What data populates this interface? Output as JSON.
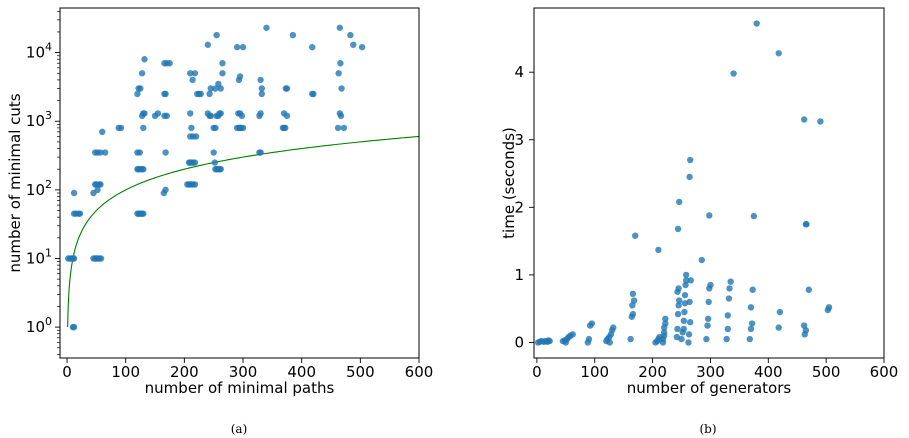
{
  "colors": {
    "points": "#1f77b4",
    "curve": "#008000",
    "axes": "#000000"
  },
  "chart_data": [
    {
      "type": "scatter",
      "caption": "(a)",
      "xlabel": "number of minimal paths",
      "ylabel": "number of minimal cuts",
      "xlim": [
        -12,
        600
      ],
      "ylim_log10": [
        -0.45,
        4.65
      ],
      "yscale": "log",
      "xticks": [
        0,
        100,
        200,
        300,
        400,
        500,
        600
      ],
      "yticks": [
        {
          "exp": 0,
          "base": "10",
          "sup": "0"
        },
        {
          "exp": 1,
          "base": "10",
          "sup": "1"
        },
        {
          "exp": 2,
          "base": "10",
          "sup": "2"
        },
        {
          "exp": 3,
          "base": "10",
          "sup": "3"
        },
        {
          "exp": 4,
          "base": "10",
          "sup": "4"
        }
      ],
      "curve": {
        "formula": "y = x",
        "color": "#008000"
      },
      "points": [
        [
          2,
          10
        ],
        [
          5,
          10
        ],
        [
          8,
          10
        ],
        [
          10,
          10
        ],
        [
          12,
          10
        ],
        [
          10,
          1
        ],
        [
          12,
          1
        ],
        [
          12,
          90
        ],
        [
          12,
          45
        ],
        [
          15,
          45
        ],
        [
          20,
          45
        ],
        [
          22,
          45
        ],
        [
          45,
          10
        ],
        [
          48,
          10
        ],
        [
          50,
          10
        ],
        [
          52,
          10
        ],
        [
          55,
          10
        ],
        [
          58,
          10
        ],
        [
          45,
          90
        ],
        [
          48,
          120
        ],
        [
          50,
          120
        ],
        [
          52,
          100
        ],
        [
          55,
          120
        ],
        [
          57,
          120
        ],
        [
          52,
          350
        ],
        [
          57,
          350
        ],
        [
          48,
          350
        ],
        [
          60,
          700
        ],
        [
          65,
          350
        ],
        [
          88,
          800
        ],
        [
          92,
          800
        ],
        [
          120,
          45
        ],
        [
          122,
          45
        ],
        [
          124,
          45
        ],
        [
          126,
          45
        ],
        [
          128,
          45
        ],
        [
          130,
          45
        ],
        [
          120,
          200
        ],
        [
          122,
          200
        ],
        [
          125,
          200
        ],
        [
          128,
          200
        ],
        [
          130,
          200
        ],
        [
          120,
          350
        ],
        [
          124,
          350
        ],
        [
          128,
          1200
        ],
        [
          130,
          1300
        ],
        [
          130,
          800
        ],
        [
          132,
          1300
        ],
        [
          122,
          3000
        ],
        [
          120,
          2500
        ],
        [
          125,
          3000
        ],
        [
          128,
          5000
        ],
        [
          132,
          8000
        ],
        [
          150,
          1200
        ],
        [
          155,
          1300
        ],
        [
          165,
          90
        ],
        [
          168,
          100
        ],
        [
          168,
          350
        ],
        [
          166,
          2500
        ],
        [
          168,
          2500
        ],
        [
          166,
          1200
        ],
        [
          170,
          1200
        ],
        [
          166,
          7000
        ],
        [
          170,
          7000
        ],
        [
          175,
          7000
        ],
        [
          205,
          120
        ],
        [
          208,
          120
        ],
        [
          210,
          120
        ],
        [
          212,
          120
        ],
        [
          215,
          120
        ],
        [
          218,
          120
        ],
        [
          208,
          250
        ],
        [
          210,
          250
        ],
        [
          212,
          250
        ],
        [
          215,
          250
        ],
        [
          218,
          250
        ],
        [
          210,
          1300
        ],
        [
          212,
          800
        ],
        [
          210,
          5000
        ],
        [
          218,
          5000
        ],
        [
          214,
          4000
        ],
        [
          210,
          600
        ],
        [
          215,
          600
        ],
        [
          220,
          600
        ],
        [
          222,
          2500
        ],
        [
          225,
          2500
        ],
        [
          228,
          2500
        ],
        [
          240,
          1300
        ],
        [
          243,
          1200
        ],
        [
          245,
          1200
        ],
        [
          240,
          13000
        ],
        [
          245,
          3000
        ],
        [
          243,
          2500
        ],
        [
          250,
          350
        ],
        [
          252,
          250
        ],
        [
          253,
          200
        ],
        [
          255,
          200
        ],
        [
          258,
          200
        ],
        [
          260,
          200
        ],
        [
          262,
          200
        ],
        [
          250,
          800
        ],
        [
          253,
          800
        ],
        [
          255,
          1200
        ],
        [
          258,
          1200
        ],
        [
          260,
          1300
        ],
        [
          262,
          1300
        ],
        [
          253,
          3000
        ],
        [
          255,
          18000
        ],
        [
          258,
          3500
        ],
        [
          262,
          3000
        ],
        [
          265,
          5000
        ],
        [
          265,
          7000
        ],
        [
          290,
          800
        ],
        [
          293,
          800
        ],
        [
          295,
          800
        ],
        [
          297,
          800
        ],
        [
          300,
          800
        ],
        [
          292,
          1300
        ],
        [
          295,
          1300
        ],
        [
          298,
          1200
        ],
        [
          293,
          4000
        ],
        [
          295,
          4500
        ],
        [
          300,
          12000
        ],
        [
          290,
          12000
        ],
        [
          328,
          350
        ],
        [
          330,
          350
        ],
        [
          332,
          2500
        ],
        [
          328,
          1200
        ],
        [
          330,
          1300
        ],
        [
          332,
          3000
        ],
        [
          330,
          4000
        ],
        [
          340,
          23000
        ],
        [
          368,
          800
        ],
        [
          370,
          800
        ],
        [
          372,
          800
        ],
        [
          370,
          1300
        ],
        [
          375,
          1200
        ],
        [
          373,
          3000
        ],
        [
          375,
          3000
        ],
        [
          385,
          18000
        ],
        [
          418,
          2500
        ],
        [
          420,
          2500
        ],
        [
          418,
          12000
        ],
        [
          462,
          800
        ],
        [
          465,
          1300
        ],
        [
          467,
          1200
        ],
        [
          468,
          3000
        ],
        [
          463,
          5000
        ],
        [
          466,
          7000
        ],
        [
          472,
          800
        ],
        [
          465,
          23000
        ],
        [
          483,
          18000
        ],
        [
          488,
          13000
        ],
        [
          503,
          12000
        ]
      ]
    },
    {
      "type": "scatter",
      "caption": "(b)",
      "xlabel": "number of generators",
      "ylabel": "time (seconds)",
      "xlim": [
        -5,
        600
      ],
      "ylim": [
        -0.23,
        4.95
      ],
      "xticks": [
        0,
        100,
        200,
        300,
        400,
        500,
        600
      ],
      "yticks": [
        0,
        1,
        2,
        3,
        4
      ],
      "points": [
        [
          2,
          0.0
        ],
        [
          5,
          0.01
        ],
        [
          8,
          0.02
        ],
        [
          12,
          0.01
        ],
        [
          15,
          0.02
        ],
        [
          18,
          0.01
        ],
        [
          20,
          0.03
        ],
        [
          22,
          0.02
        ],
        [
          45,
          0.02
        ],
        [
          48,
          0.03
        ],
        [
          52,
          0.05
        ],
        [
          55,
          0.08
        ],
        [
          58,
          0.1
        ],
        [
          62,
          0.12
        ],
        [
          50,
          0.0
        ],
        [
          88,
          0.0
        ],
        [
          90,
          0.05
        ],
        [
          92,
          0.25
        ],
        [
          95,
          0.28
        ],
        [
          120,
          0.02
        ],
        [
          122,
          0.05
        ],
        [
          125,
          0.08
        ],
        [
          128,
          0.12
        ],
        [
          130,
          0.18
        ],
        [
          132,
          0.22
        ],
        [
          126,
          0.0
        ],
        [
          162,
          0.05
        ],
        [
          164,
          0.38
        ],
        [
          166,
          0.42
        ],
        [
          165,
          0.55
        ],
        [
          168,
          0.62
        ],
        [
          166,
          0.72
        ],
        [
          170,
          1.58
        ],
        [
          205,
          0.0
        ],
        [
          208,
          0.02
        ],
        [
          210,
          0.05
        ],
        [
          212,
          0.08
        ],
        [
          210,
          1.37
        ],
        [
          218,
          0.05
        ],
        [
          220,
          0.1
        ],
        [
          220,
          0.15
        ],
        [
          220,
          0.22
        ],
        [
          222,
          0.28
        ],
        [
          222,
          0.35
        ],
        [
          218,
          0.0
        ],
        [
          242,
          0.08
        ],
        [
          243,
          0.2
        ],
        [
          244,
          0.42
        ],
        [
          245,
          0.55
        ],
        [
          246,
          0.62
        ],
        [
          243,
          0.75
        ],
        [
          245,
          0.8
        ],
        [
          244,
          1.68
        ],
        [
          246,
          2.08
        ],
        [
          250,
          0.05
        ],
        [
          252,
          0.15
        ],
        [
          254,
          0.2
        ],
        [
          254,
          0.32
        ],
        [
          255,
          0.45
        ],
        [
          256,
          0.58
        ],
        [
          256,
          0.7
        ],
        [
          257,
          0.85
        ],
        [
          258,
          0.92
        ],
        [
          258,
          1.0
        ],
        [
          262,
          0.0
        ],
        [
          263,
          0.12
        ],
        [
          265,
          0.3
        ],
        [
          264,
          0.6
        ],
        [
          266,
          0.92
        ],
        [
          264,
          2.45
        ],
        [
          265,
          2.7
        ],
        [
          285,
          1.22
        ],
        [
          293,
          0.05
        ],
        [
          295,
          0.25
        ],
        [
          296,
          0.35
        ],
        [
          297,
          0.6
        ],
        [
          298,
          0.8
        ],
        [
          300,
          0.85
        ],
        [
          298,
          1.88
        ],
        [
          328,
          0.05
        ],
        [
          330,
          0.2
        ],
        [
          330,
          0.4
        ],
        [
          332,
          0.65
        ],
        [
          333,
          0.8
        ],
        [
          335,
          0.9
        ],
        [
          340,
          3.98
        ],
        [
          368,
          0.05
        ],
        [
          370,
          0.2
        ],
        [
          372,
          0.28
        ],
        [
          370,
          0.52
        ],
        [
          373,
          0.78
        ],
        [
          375,
          1.87
        ],
        [
          380,
          4.72
        ],
        [
          418,
          0.22
        ],
        [
          420,
          0.45
        ],
        [
          418,
          4.28
        ],
        [
          463,
          0.12
        ],
        [
          465,
          0.18
        ],
        [
          462,
          0.25
        ],
        [
          465,
          1.75
        ],
        [
          466,
          1.75
        ],
        [
          462,
          3.3
        ],
        [
          470,
          0.78
        ],
        [
          490,
          3.27
        ],
        [
          503,
          0.48
        ],
        [
          505,
          0.52
        ]
      ]
    }
  ]
}
